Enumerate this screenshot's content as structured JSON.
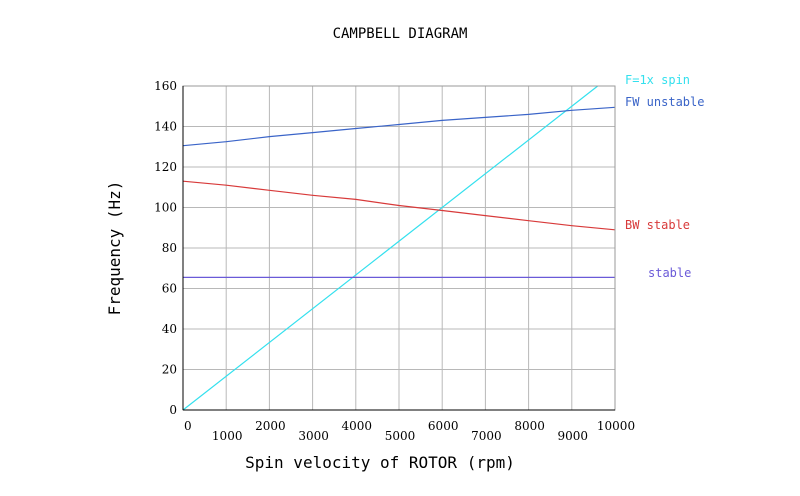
{
  "chart_data": {
    "type": "line",
    "title": "CAMPBELL DIAGRAM",
    "xlabel": "Spin velocity of ROTOR (rpm)",
    "ylabel": "Frequency (Hz)",
    "xlim": [
      0,
      10000
    ],
    "ylim": [
      0,
      160
    ],
    "grid": true,
    "x_ticks": [
      "0",
      "1000",
      "2000",
      "3000",
      "4000",
      "5000",
      "6000",
      "7000",
      "8000",
      "9000",
      "10000"
    ],
    "y_ticks": [
      "0",
      "20",
      "40",
      "60",
      "80",
      "100",
      "120",
      "140",
      "160"
    ],
    "series": [
      {
        "name": "F=1x spin",
        "color": "#33e0ee",
        "x": [
          0,
          9600
        ],
        "y": [
          0,
          160
        ]
      },
      {
        "name": "FW unstable",
        "color": "#3a64c8",
        "x": [
          0,
          1000,
          2000,
          3000,
          4000,
          5000,
          6000,
          7000,
          8000,
          9000,
          10000
        ],
        "y": [
          130.5,
          132.5,
          135,
          137,
          139,
          141,
          143,
          144.5,
          146,
          148,
          149.5
        ]
      },
      {
        "name": "BW stable",
        "color": "#d83a3a",
        "x": [
          0,
          1000,
          2000,
          3000,
          4000,
          5000,
          6000,
          7000,
          8000,
          9000,
          10000
        ],
        "y": [
          113,
          111,
          108.5,
          106,
          104,
          101,
          98.5,
          96,
          93.5,
          91,
          89
        ]
      },
      {
        "name": "stable",
        "color": "#6a5ad8",
        "x": [
          0,
          10000
        ],
        "y": [
          65.5,
          65.5
        ]
      }
    ]
  }
}
